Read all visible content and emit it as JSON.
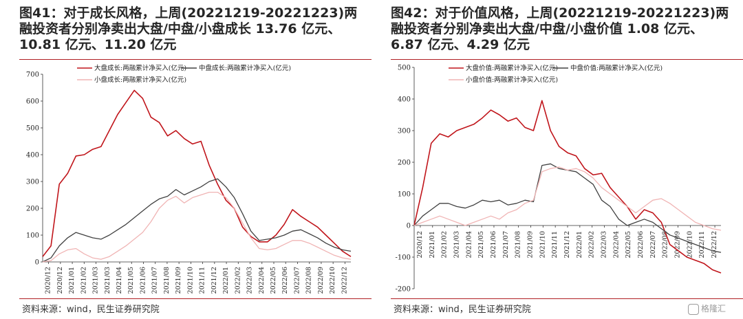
{
  "charts": [
    {
      "title": "图41：对于成长风格，上周(20221219-20221223)两\n融投资者分别净卖出大盘/中盘/小盘成长 13.76 亿元、\n10.81 亿元、11.20 亿元",
      "source": "资料来源：wind，民生证券研究院"
    },
    {
      "title": "图42：对于价值风格，上周(20221219-20221223)两\n融投资者分别净卖出大盘/中盘/小盘价值  1.08  亿元、\n6.87 亿元、4.29 亿元",
      "source": "资料来源：wind，民生证券研究院"
    }
  ],
  "watermark": "格隆汇",
  "series_colors": {
    "large": "#c0141a",
    "mid": "#404040",
    "small": "#f0b4b4"
  },
  "chart_data": [
    {
      "type": "line",
      "title": "",
      "xlabel": "",
      "ylabel": "",
      "ylim": [
        0,
        700
      ],
      "yticks": [
        0,
        100,
        200,
        300,
        400,
        500,
        600,
        700
      ],
      "xticks": [
        "2020/12",
        "2020/12",
        "2021/01",
        "2021/02",
        "2021/03",
        "2021/03",
        "2021/04",
        "2021/05",
        "2021/06",
        "2021/07",
        "2021/08",
        "2021/09",
        "2021/10",
        "2021/11",
        "2021/12",
        "2022/01",
        "2022/02",
        "2022/03",
        "2022/04",
        "2022/05",
        "2022/06",
        "2022/07",
        "2022/08",
        "2022/09",
        "2022/10",
        "2022/12"
      ],
      "legend": "top",
      "grid": false,
      "series": [
        {
          "name": "大盘成长:两融累计净买入(亿元)",
          "color": "#c0141a",
          "values": [
            20,
            60,
            290,
            330,
            395,
            400,
            420,
            430,
            490,
            550,
            595,
            640,
            610,
            540,
            520,
            470,
            490,
            460,
            440,
            450,
            360,
            290,
            230,
            200,
            130,
            95,
            75,
            75,
            100,
            140,
            195,
            170,
            150,
            130,
            100,
            70,
            40,
            20
          ]
        },
        {
          "name": "中盘成长:两融累计净买入(亿元)",
          "color": "#404040",
          "values": [
            0,
            15,
            60,
            90,
            110,
            100,
            90,
            85,
            100,
            120,
            140,
            165,
            190,
            215,
            235,
            245,
            270,
            250,
            265,
            280,
            300,
            310,
            280,
            240,
            180,
            115,
            80,
            85,
            90,
            100,
            115,
            120,
            105,
            90,
            70,
            55,
            45,
            40
          ]
        },
        {
          "name": "小盘成长:两融累计净买入(亿元)",
          "color": "#f0b4b4",
          "values": [
            0,
            5,
            30,
            45,
            50,
            30,
            15,
            10,
            20,
            40,
            60,
            85,
            110,
            150,
            200,
            230,
            245,
            220,
            240,
            250,
            260,
            260,
            240,
            200,
            145,
            90,
            50,
            45,
            50,
            65,
            80,
            80,
            70,
            55,
            40,
            25,
            15,
            10
          ]
        }
      ]
    },
    {
      "type": "line",
      "title": "",
      "xlabel": "",
      "ylabel": "",
      "ylim": [
        -200,
        500
      ],
      "yticks": [
        -200,
        -100,
        0,
        100,
        200,
        300,
        400,
        500
      ],
      "xticks": [
        "2020/12",
        "2021/01",
        "2021/02",
        "2021/03",
        "2021/04",
        "2021/05",
        "2021/06",
        "2021/07",
        "2021/08",
        "2021/09",
        "2021/10",
        "2021/11",
        "2021/12",
        "2022/01",
        "2022/02",
        "2022/03",
        "2022/04",
        "2022/05",
        "2022/06",
        "2022/07",
        "2022/08",
        "2022/09",
        "2022/10",
        "2022/11",
        "2022/12"
      ],
      "legend": "top",
      "grid": false,
      "series": [
        {
          "name": "大盘价值:两融累计净买入(亿元)",
          "color": "#c0141a",
          "values": [
            0,
            120,
            260,
            290,
            280,
            300,
            310,
            320,
            340,
            365,
            350,
            330,
            340,
            310,
            300,
            395,
            300,
            250,
            230,
            220,
            180,
            160,
            165,
            120,
            90,
            60,
            20,
            50,
            40,
            10,
            -60,
            -80,
            -100,
            -110,
            -120,
            -140,
            -150
          ]
        },
        {
          "name": "中盘价值:两融累计净买入(亿元)",
          "color": "#404040",
          "values": [
            0,
            30,
            50,
            70,
            70,
            60,
            55,
            65,
            80,
            75,
            80,
            65,
            70,
            80,
            75,
            190,
            195,
            180,
            175,
            170,
            150,
            130,
            80,
            60,
            20,
            0,
            10,
            20,
            10,
            -10,
            -30,
            -40,
            -50,
            -60,
            -70,
            -80,
            -85
          ]
        },
        {
          "name": "小盘价值:两融累计净买入(亿元)",
          "color": "#f0b4b4",
          "values": [
            0,
            10,
            20,
            30,
            20,
            10,
            0,
            10,
            20,
            30,
            20,
            40,
            50,
            70,
            80,
            170,
            180,
            185,
            175,
            180,
            170,
            150,
            120,
            100,
            80,
            60,
            40,
            60,
            80,
            85,
            70,
            50,
            30,
            10,
            0,
            -10,
            -15
          ]
        }
      ]
    }
  ]
}
